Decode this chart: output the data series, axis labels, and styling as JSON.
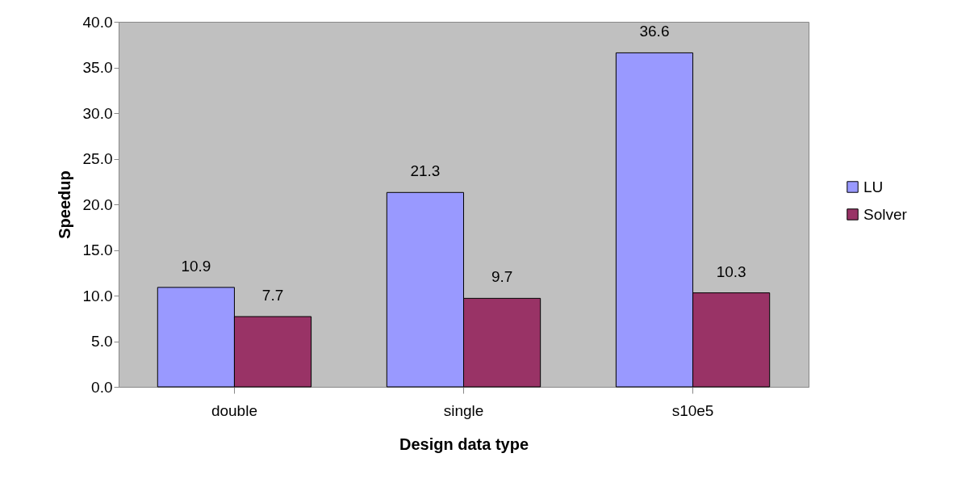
{
  "chart_data": {
    "type": "bar",
    "xlabel": "Design data type",
    "ylabel": "Speedup",
    "categories": [
      "double",
      "single",
      "s10e5"
    ],
    "series": [
      {
        "name": "LU",
        "color": "#9999ff",
        "values": [
          10.9,
          21.3,
          36.6
        ]
      },
      {
        "name": "Solver",
        "color": "#993366",
        "values": [
          7.7,
          9.7,
          10.3
        ]
      }
    ],
    "ylim": [
      0,
      40
    ],
    "yticks": [
      {
        "value": 0,
        "label": "0.0"
      },
      {
        "value": 5,
        "label": "5.0"
      },
      {
        "value": 10,
        "label": "10.0"
      },
      {
        "value": 15,
        "label": "15.0"
      },
      {
        "value": 20,
        "label": "20.0"
      },
      {
        "value": 25,
        "label": "25.0"
      },
      {
        "value": 30,
        "label": "30.0"
      },
      {
        "value": 35,
        "label": "35.0"
      },
      {
        "value": 40,
        "label": "40.0"
      }
    ],
    "grid": false,
    "legend": "right",
    "data_labels": true
  }
}
